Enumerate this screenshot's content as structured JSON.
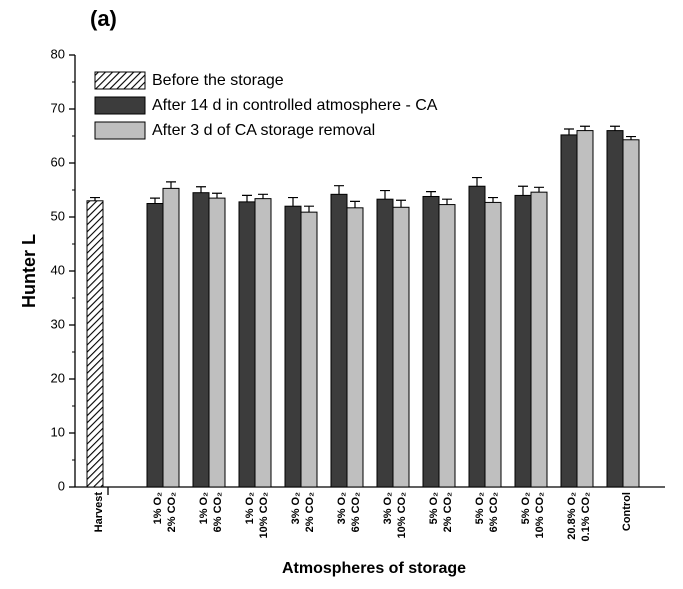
{
  "chart_data": {
    "type": "bar",
    "panel": "(a)",
    "xlabel": "Atmospheres of storage",
    "ylabel": "Hunter L",
    "categories": [
      [
        "Harvest"
      ],
      [
        "1% O₂",
        "2% CO₂"
      ],
      [
        "1% O₂",
        "6% CO₂"
      ],
      [
        "1% O₂",
        "10% CO₂"
      ],
      [
        "3% O₂",
        "2% CO₂"
      ],
      [
        "3% O₂",
        "6% CO₂"
      ],
      [
        "3% O₂",
        "10% CO₂"
      ],
      [
        "5% O₂",
        "2% CO₂"
      ],
      [
        "5% O₂",
        "6% CO₂"
      ],
      [
        "5% O₂",
        "10% CO₂"
      ],
      [
        "20.8% O₂",
        "0.1% CO₂"
      ],
      [
        "Control"
      ]
    ],
    "series": [
      {
        "name": "Before the storage",
        "color": "#000000",
        "hatch": true,
        "values": [
          53,
          null,
          null,
          null,
          null,
          null,
          null,
          null,
          null,
          null,
          null,
          null
        ],
        "errors": [
          0.6,
          null,
          null,
          null,
          null,
          null,
          null,
          null,
          null,
          null,
          null,
          null
        ]
      },
      {
        "name": "After 14 d in controlled atmosphere - CA",
        "color": "#3c3c3c",
        "values": [
          null,
          52.5,
          54.5,
          52.8,
          52,
          54.2,
          53.3,
          53.8,
          55.7,
          54,
          65.2,
          66
        ],
        "errors": [
          null,
          1,
          1.1,
          1.2,
          1.6,
          1.6,
          1.6,
          0.9,
          1.6,
          1.7,
          1.1,
          0.8
        ]
      },
      {
        "name": "After 3 d of CA storage removal",
        "color": "#bfbfbf",
        "values": [
          null,
          55.3,
          53.5,
          53.4,
          50.9,
          51.7,
          51.8,
          52.3,
          52.7,
          54.6,
          66,
          64.3
        ],
        "errors": [
          null,
          1.2,
          0.9,
          0.8,
          1.1,
          1.2,
          1.3,
          1,
          0.9,
          0.9,
          0.8,
          0.6
        ]
      }
    ],
    "ylim": [
      0,
      80
    ],
    "yticks": [
      0,
      10,
      20,
      30,
      40,
      50,
      60,
      70,
      80
    ],
    "minor_ticks": true
  }
}
